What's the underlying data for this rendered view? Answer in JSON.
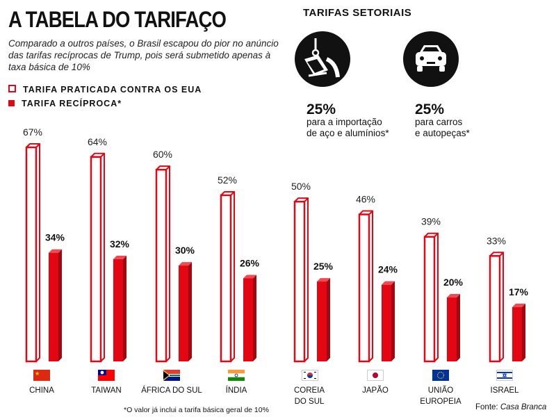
{
  "header": {
    "title": "A TABELA DO TARIFAÇO",
    "subtitle": "Comparado a outros países, o Brasil escapou do pior no anúncio das tarifas recíprocas de Trump, pois será submetido apenas à taxa básica de 10%"
  },
  "legend": {
    "practiced": "TARIFA PRATICADA CONTRA OS EUA",
    "reciprocal": "TARIFA RECÍPROCA*"
  },
  "sectoral": {
    "title": "TARIFAS SETORIAIS",
    "items": [
      {
        "icon": "steel-ladle-icon",
        "pct": "25%",
        "line1": "para a importação",
        "line2": "de aço e alumínios*"
      },
      {
        "icon": "car-icon",
        "pct": "25%",
        "line1": "para carros",
        "line2": "e autopeças*"
      }
    ]
  },
  "chart_data": {
    "type": "bar",
    "title": "A TABELA DO TARIFAÇO",
    "categories": [
      "CHINA",
      "TAIWAN",
      "ÁFRICA DO SUL",
      "ÍNDIA",
      "COREIA DO SUL",
      "JAPÃO",
      "UNIÃO EUROPEIA",
      "ISRAEL"
    ],
    "series": [
      {
        "name": "TARIFA PRATICADA CONTRA OS EUA",
        "values": [
          67,
          64,
          60,
          52,
          50,
          46,
          39,
          33
        ]
      },
      {
        "name": "TARIFA RECÍPROCA*",
        "values": [
          34,
          32,
          30,
          26,
          25,
          24,
          20,
          17
        ]
      }
    ],
    "ylim": [
      0,
      70
    ],
    "xlabel": "",
    "ylabel": "",
    "grid": false,
    "value_suffix": "%"
  },
  "countries": [
    {
      "line1": "CHINA",
      "line2": "",
      "flag": "china-flag-icon"
    },
    {
      "line1": "TAIWAN",
      "line2": "",
      "flag": "taiwan-flag-icon"
    },
    {
      "line1": "ÁFRICA DO SUL",
      "line2": "",
      "flag": "south-africa-flag-icon"
    },
    {
      "line1": "ÍNDIA",
      "line2": "",
      "flag": "india-flag-icon"
    },
    {
      "line1": "COREIA",
      "line2": "DO SUL",
      "flag": "south-korea-flag-icon"
    },
    {
      "line1": "JAPÃO",
      "line2": "",
      "flag": "japan-flag-icon"
    },
    {
      "line1": "UNIÃO",
      "line2": "EUROPEIA",
      "flag": "eu-flag-icon"
    },
    {
      "line1": "ISRAEL",
      "line2": "",
      "flag": "israel-flag-icon"
    }
  ],
  "footer": {
    "footnote": "*O valor já inclui a tarifa básica geral de 10%",
    "source_label": "Fonte:",
    "source_name": "Casa Branca"
  },
  "colors": {
    "accent": "#e30613",
    "accent_dark": "#9e0a12",
    "ink": "#111111"
  }
}
